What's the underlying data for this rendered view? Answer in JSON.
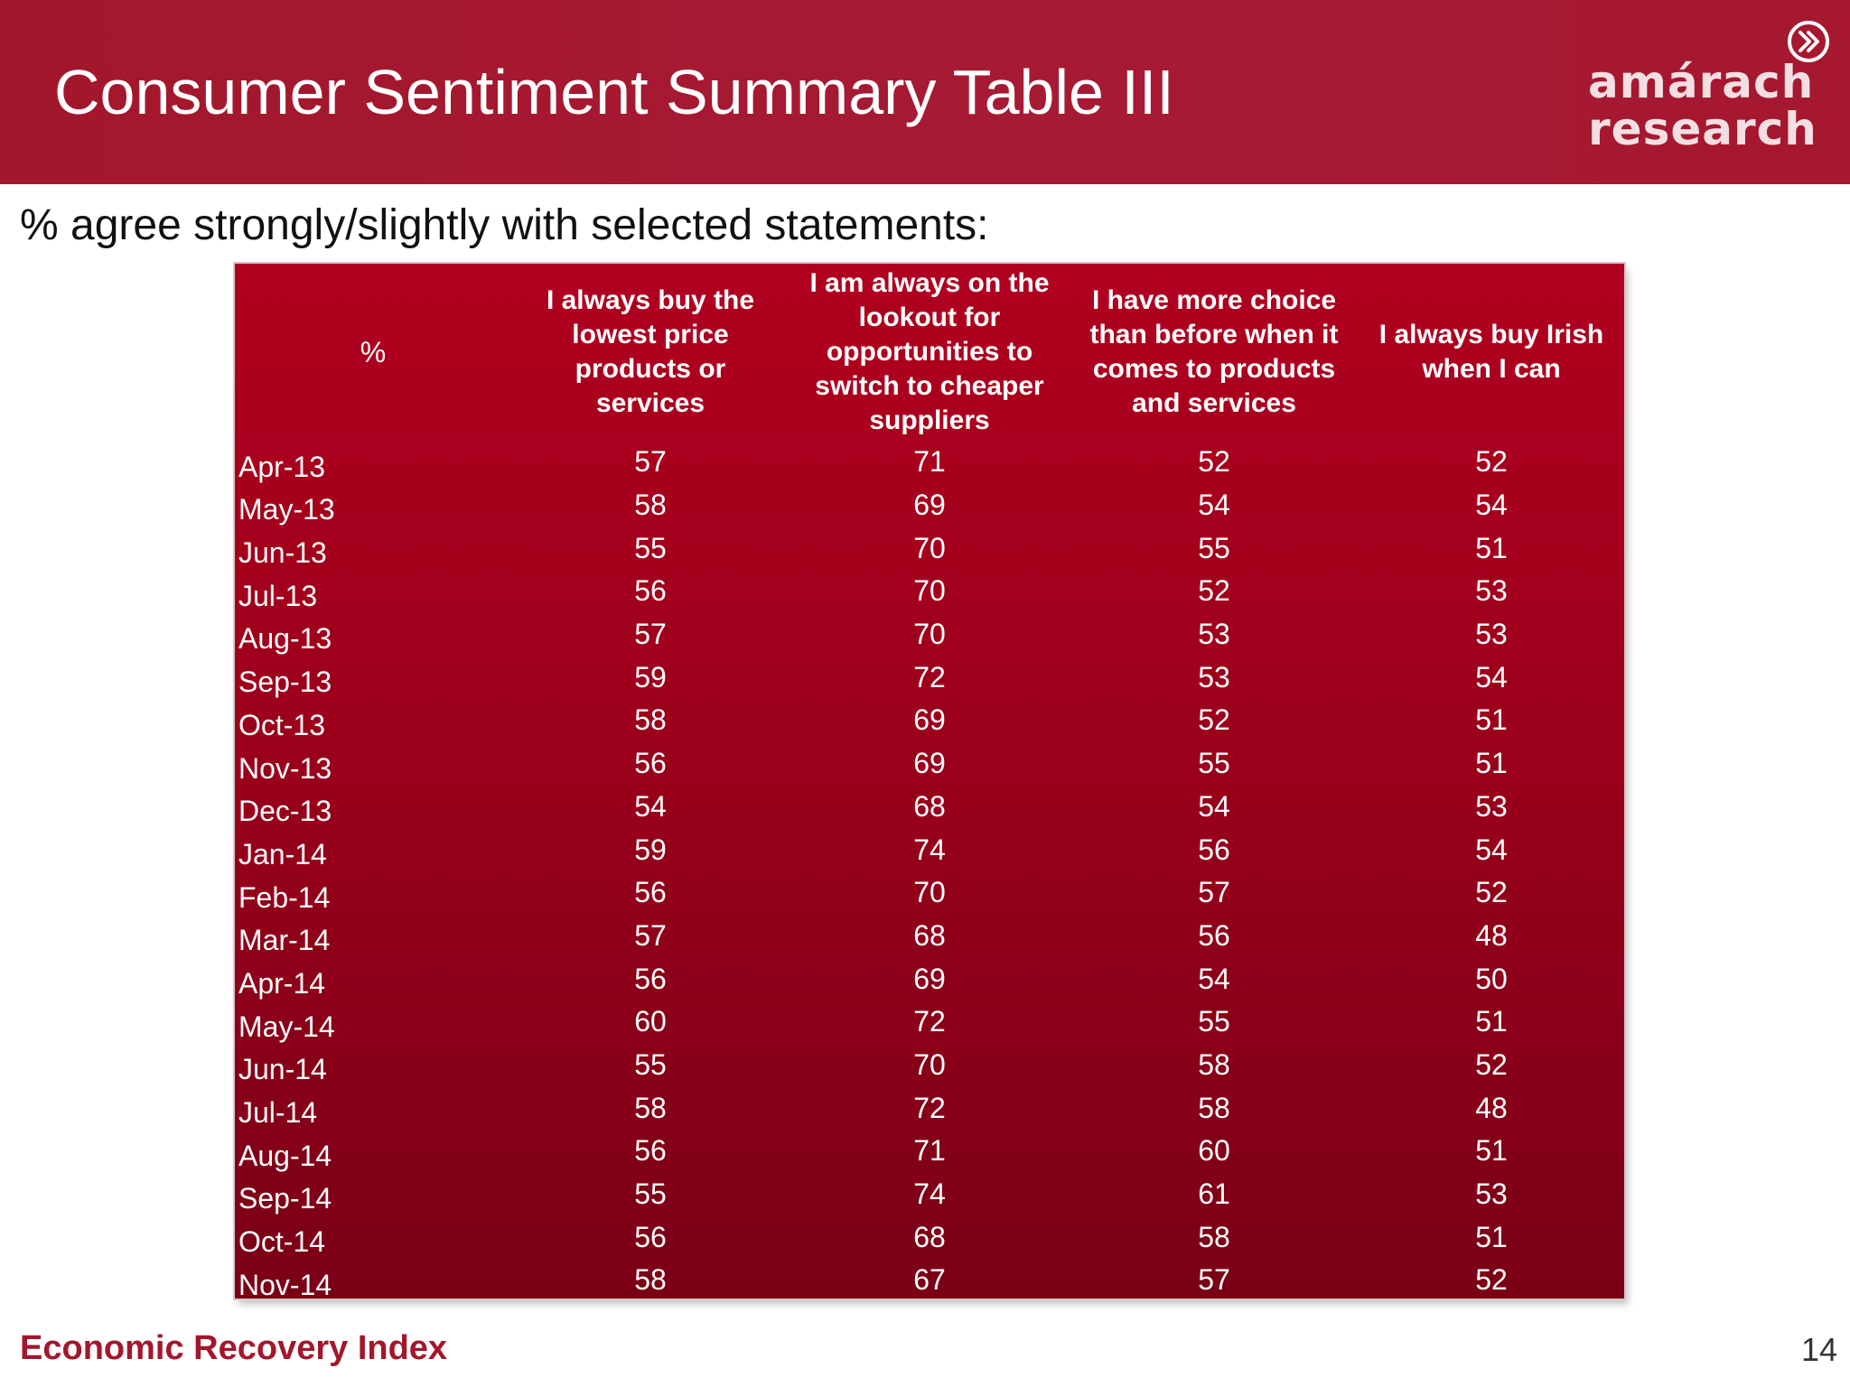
{
  "header": {
    "title": "Consumer Sentiment Summary Table III",
    "logo_line1": "amárach",
    "logo_line2": "research",
    "logo_icon": "chevron-circle-icon"
  },
  "subtitle": "% agree strongly/slightly with selected statements:",
  "table": {
    "corner_label": "%",
    "columns": [
      "I always buy the lowest price products or services",
      "I am always on the lookout for opportunities to switch to cheaper suppliers",
      "I have more choice than before when it comes to products and services",
      "I always buy Irish when I can"
    ],
    "rows": [
      {
        "month": "Apr-13",
        "values": [
          "57",
          "71",
          "52",
          "52"
        ]
      },
      {
        "month": "May-13",
        "values": [
          "58",
          "69",
          "54",
          "54"
        ]
      },
      {
        "month": "Jun-13",
        "values": [
          "55",
          "70",
          "55",
          "51"
        ]
      },
      {
        "month": "Jul-13",
        "values": [
          "56",
          "70",
          "52",
          "53"
        ]
      },
      {
        "month": "Aug-13",
        "values": [
          "57",
          "70",
          "53",
          "53"
        ]
      },
      {
        "month": "Sep-13",
        "values": [
          "59",
          "72",
          "53",
          "54"
        ]
      },
      {
        "month": "Oct-13",
        "values": [
          "58",
          "69",
          "52",
          "51"
        ]
      },
      {
        "month": "Nov-13",
        "values": [
          "56",
          "69",
          "55",
          "51"
        ]
      },
      {
        "month": "Dec-13",
        "values": [
          "54",
          "68",
          "54",
          "53"
        ]
      },
      {
        "month": "Jan-14",
        "values": [
          "59",
          "74",
          "56",
          "54"
        ]
      },
      {
        "month": "Feb-14",
        "values": [
          "56",
          "70",
          "57",
          "52"
        ]
      },
      {
        "month": "Mar-14",
        "values": [
          "57",
          "68",
          "56",
          "48"
        ]
      },
      {
        "month": "Apr-14",
        "values": [
          "56",
          "69",
          "54",
          "50"
        ]
      },
      {
        "month": "May-14",
        "values": [
          "60",
          "72",
          "55",
          "51"
        ]
      },
      {
        "month": "Jun-14",
        "values": [
          "55",
          "70",
          "58",
          "52"
        ]
      },
      {
        "month": "Jul-14",
        "values": [
          "58",
          "72",
          "58",
          "48"
        ]
      },
      {
        "month": "Aug-14",
        "values": [
          "56",
          "71",
          "60",
          "51"
        ]
      },
      {
        "month": "Sep-14",
        "values": [
          "55",
          "74",
          "61",
          "53"
        ]
      },
      {
        "month": "Oct-14",
        "values": [
          "56",
          "68",
          "58",
          "51"
        ]
      },
      {
        "month": "Nov-14",
        "values": [
          "58",
          "67",
          "57",
          "52"
        ]
      }
    ]
  },
  "footer": {
    "left": "Economic Recovery Index",
    "page_number": "14"
  },
  "colors": {
    "header_red": "#a3172c",
    "table_red_top": "#b0001f",
    "table_red_bottom": "#7a0016",
    "footer_text": "#a3172c"
  }
}
